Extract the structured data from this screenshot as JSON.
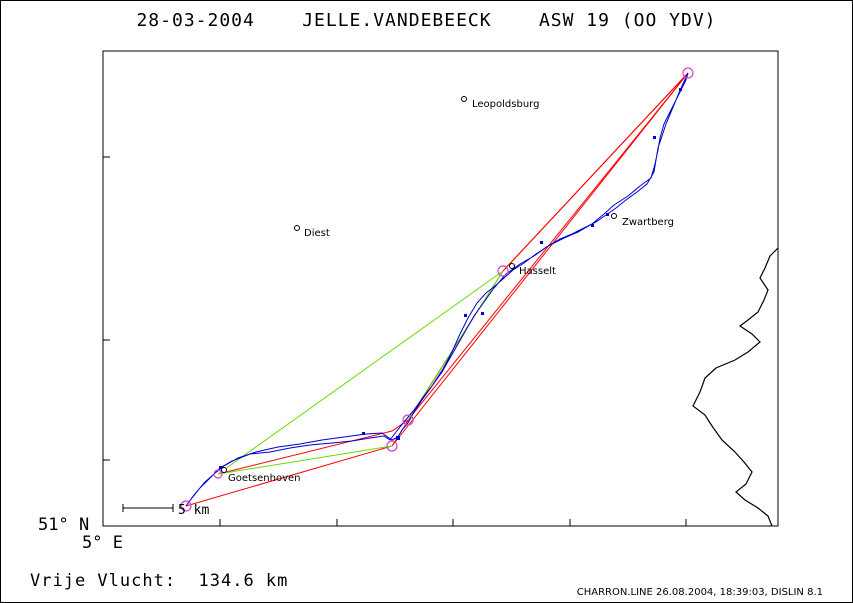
{
  "header": {
    "date": "28-03-2004",
    "pilot": "JELLE.VANDEBEECK",
    "glider": "ASW 19 (OO YDV)"
  },
  "corner": {
    "lat": "51° N",
    "lon": "5° E"
  },
  "towns": {
    "leopoldsburg": "Leopoldsburg",
    "diest": "Diest",
    "zwartberg": "Zwartberg",
    "hasselt": "Hasselt",
    "goetsenhoven": "Goetsenhoven"
  },
  "scale": {
    "label": "5 km"
  },
  "footer": {
    "distance": "Vrije Vlucht:  134.6 km",
    "credit": "CHARRON.LINE 26.08.2004, 18:39:03, DISLIN 8.1"
  },
  "colors": {
    "track": "#0000cc",
    "leg_task": "#ff0000",
    "leg_alt": "#66dd00",
    "turnpoint": "#cc44cc",
    "border": "#000000"
  }
}
